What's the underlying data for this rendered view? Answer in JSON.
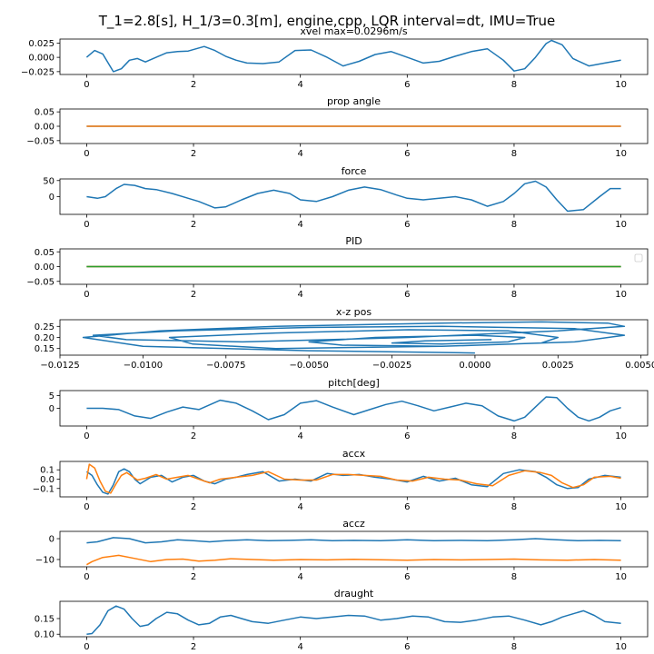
{
  "suptitle": "T_1=2.8[s], H_1/3=0.3[m], engine,cpp, LQR interval=dt, IMU=True",
  "colors": {
    "blue": "#1f77b4",
    "orange": "#ff7f0e",
    "green": "#2ca02c",
    "axis": "#000000"
  },
  "chart_data": [
    {
      "type": "line",
      "title": "xvel max=0.0296m/s",
      "xlim": [
        -0.5,
        10.5
      ],
      "ylim": [
        -0.03,
        0.032
      ],
      "xticks": [
        0,
        2,
        4,
        6,
        8,
        10
      ],
      "xtick_labels": [
        "0",
        "2",
        "4",
        "6",
        "8",
        "10"
      ],
      "yticks": [
        -0.025,
        0,
        0.025
      ],
      "ytick_labels": [
        "−0.025",
        "0.000",
        "0.025"
      ],
      "series": [
        {
          "color": "#1f77b4",
          "x": [
            0,
            0.15,
            0.3,
            0.5,
            0.65,
            0.8,
            0.95,
            1.1,
            1.3,
            1.5,
            1.7,
            1.9,
            2.2,
            2.4,
            2.6,
            2.8,
            3.0,
            3.3,
            3.6,
            3.9,
            4.2,
            4.5,
            4.8,
            5.1,
            5.4,
            5.7,
            6.0,
            6.3,
            6.6,
            6.9,
            7.2,
            7.5,
            7.8,
            8.0,
            8.2,
            8.4,
            8.6,
            8.7,
            8.9,
            9.1,
            9.4,
            9.7,
            10.0
          ],
          "y": [
            0.0,
            0.012,
            0.006,
            -0.025,
            -0.02,
            -0.005,
            -0.002,
            -0.008,
            0.0,
            0.008,
            0.01,
            0.011,
            0.019,
            0.012,
            0.002,
            -0.005,
            -0.01,
            -0.011,
            -0.008,
            0.012,
            0.013,
            0.0,
            -0.015,
            -0.007,
            0.005,
            0.01,
            0.0,
            -0.01,
            -0.007,
            0.002,
            0.01,
            0.015,
            -0.005,
            -0.024,
            -0.02,
            0.0,
            0.024,
            0.0296,
            0.022,
            -0.002,
            -0.015,
            -0.01,
            -0.005
          ]
        }
      ]
    },
    {
      "type": "line",
      "title": "prop angle",
      "xlim": [
        -0.5,
        10.5
      ],
      "ylim": [
        -0.06,
        0.06
      ],
      "xticks": [
        0,
        2,
        4,
        6,
        8,
        10
      ],
      "xtick_labels": [
        "0",
        "2",
        "4",
        "6",
        "8",
        "10"
      ],
      "yticks": [
        -0.05,
        0,
        0.05
      ],
      "ytick_labels": [
        "−0.05",
        "0.00",
        "0.05"
      ],
      "series": [
        {
          "color": "#1f77b4",
          "x": [
            0,
            10
          ],
          "y": [
            0,
            0
          ]
        },
        {
          "color": "#ff7f0e",
          "x": [
            0,
            10
          ],
          "y": [
            0,
            0
          ]
        }
      ]
    },
    {
      "type": "line",
      "title": "force",
      "xlim": [
        -0.5,
        10.5
      ],
      "ylim": [
        -55,
        55
      ],
      "xticks": [
        0,
        2,
        4,
        6,
        8,
        10
      ],
      "xtick_labels": [
        "0",
        "2",
        "4",
        "6",
        "8",
        "10"
      ],
      "yticks": [
        0,
        50
      ],
      "ytick_labels": [
        "0",
        "50"
      ],
      "series": [
        {
          "color": "#1f77b4",
          "x": [
            0,
            0.2,
            0.35,
            0.55,
            0.7,
            0.9,
            1.1,
            1.3,
            1.6,
            1.9,
            2.1,
            2.4,
            2.6,
            2.9,
            3.2,
            3.5,
            3.8,
            4.0,
            4.3,
            4.6,
            4.9,
            5.2,
            5.5,
            5.8,
            6.0,
            6.3,
            6.6,
            6.9,
            7.2,
            7.5,
            7.8,
            8.0,
            8.2,
            8.4,
            8.6,
            8.8,
            9.0,
            9.3,
            9.6,
            9.8,
            10.0
          ],
          "y": [
            0,
            -5,
            0,
            25,
            38,
            35,
            25,
            22,
            10,
            -5,
            -15,
            -35,
            -32,
            -10,
            10,
            20,
            10,
            -10,
            -15,
            0,
            20,
            30,
            22,
            5,
            -5,
            -10,
            -5,
            0,
            -10,
            -30,
            -15,
            10,
            40,
            48,
            30,
            -10,
            -45,
            -40,
            0,
            25,
            25
          ]
        }
      ]
    },
    {
      "type": "line",
      "title": "PID",
      "xlim": [
        -0.5,
        10.5
      ],
      "ylim": [
        -0.06,
        0.06
      ],
      "xticks": [
        0,
        2,
        4,
        6,
        8,
        10
      ],
      "xtick_labels": [
        "0",
        "2",
        "4",
        "6",
        "8",
        "10"
      ],
      "yticks": [
        -0.05,
        0,
        0.05
      ],
      "ytick_labels": [
        "−0.05",
        "0.00",
        "0.05"
      ],
      "legend": "upper right, empty",
      "series": [
        {
          "color": "#1f77b4",
          "x": [
            0,
            10
          ],
          "y": [
            0,
            0
          ]
        },
        {
          "color": "#ff7f0e",
          "x": [
            0,
            10
          ],
          "y": [
            0,
            0
          ]
        },
        {
          "color": "#2ca02c",
          "x": [
            0,
            10
          ],
          "y": [
            0,
            0
          ]
        }
      ]
    },
    {
      "type": "line",
      "title": "x-z pos",
      "xlim": [
        -0.0125,
        0.0052
      ],
      "ylim": [
        0.12,
        0.28
      ],
      "xticks": [
        -0.0125,
        -0.01,
        -0.0075,
        -0.005,
        -0.0025,
        0,
        0.0025,
        0.005
      ],
      "xtick_labels": [
        "−0.0125",
        "−0.0100",
        "−0.0075",
        "−0.0050",
        "−0.0025",
        "0.0000",
        "0.0025",
        "0.0050"
      ],
      "yticks": [
        0.15,
        0.2,
        0.25
      ],
      "ytick_labels": [
        "0.15",
        "0.20",
        "0.25"
      ],
      "series": [
        {
          "color": "#1f77b4",
          "x": [
            0.0,
            -0.005,
            -0.01,
            -0.0118,
            -0.0095,
            -0.006,
            -0.001,
            0.002,
            0.004,
            0.0045,
            0.0025,
            -0.002,
            -0.007,
            -0.0105,
            -0.0115,
            -0.009,
            -0.005,
            -0.001,
            0.003,
            0.0045,
            0.003,
            -0.001,
            -0.006,
            -0.0085,
            -0.0092,
            -0.006,
            -0.002,
            0.001,
            0.0025,
            0.002,
            -0.001,
            -0.004,
            -0.005,
            -0.003,
            0.0,
            0.0015,
            0.001,
            -0.001,
            -0.0025,
            -0.0015,
            0.0005
          ],
          "y": [
            0.13,
            0.14,
            0.16,
            0.2,
            0.23,
            0.25,
            0.265,
            0.27,
            0.265,
            0.25,
            0.23,
            0.2,
            0.18,
            0.19,
            0.21,
            0.23,
            0.245,
            0.25,
            0.24,
            0.21,
            0.18,
            0.16,
            0.15,
            0.17,
            0.2,
            0.22,
            0.235,
            0.23,
            0.2,
            0.175,
            0.16,
            0.165,
            0.18,
            0.2,
            0.21,
            0.2,
            0.18,
            0.17,
            0.175,
            0.185,
            0.19
          ]
        }
      ]
    },
    {
      "type": "line",
      "title": "pitch[deg]",
      "xlim": [
        -0.5,
        10.5
      ],
      "ylim": [
        -7,
        7
      ],
      "xticks": [
        0,
        2,
        4,
        6,
        8,
        10
      ],
      "xtick_labels": [
        "0",
        "2",
        "4",
        "6",
        "8",
        "10"
      ],
      "yticks": [
        0,
        5
      ],
      "ytick_labels": [
        "0",
        "5"
      ],
      "series": [
        {
          "color": "#1f77b4",
          "x": [
            0,
            0.3,
            0.6,
            0.9,
            1.2,
            1.5,
            1.8,
            2.1,
            2.5,
            2.8,
            3.1,
            3.4,
            3.7,
            4.0,
            4.3,
            4.6,
            5.0,
            5.3,
            5.6,
            5.9,
            6.2,
            6.5,
            6.8,
            7.1,
            7.4,
            7.7,
            8.0,
            8.2,
            8.4,
            8.6,
            8.8,
            9.0,
            9.2,
            9.4,
            9.6,
            9.8,
            10.0
          ],
          "y": [
            0,
            0,
            -0.5,
            -3.0,
            -4.0,
            -1.5,
            0.5,
            -0.5,
            3.2,
            2.0,
            -1.0,
            -4.5,
            -2.5,
            2.0,
            3.0,
            0.5,
            -2.5,
            -0.5,
            1.5,
            2.8,
            1.0,
            -1.0,
            0.5,
            2.0,
            1.0,
            -3.0,
            -5.0,
            -3.5,
            0.5,
            4.5,
            4.2,
            0.0,
            -3.5,
            -5.0,
            -3.5,
            -1.0,
            0.3
          ]
        }
      ]
    },
    {
      "type": "line",
      "title": "accx",
      "xlim": [
        -0.5,
        10.5
      ],
      "ylim": [
        -0.19,
        0.19
      ],
      "xticks": [
        0,
        2,
        4,
        6,
        8,
        10
      ],
      "xtick_labels": [
        "0",
        "2",
        "4",
        "6",
        "8",
        "10"
      ],
      "yticks": [
        -0.1,
        0,
        0.1
      ],
      "ytick_labels": [
        "−0.1",
        "0.0",
        "0.1"
      ],
      "series": [
        {
          "color": "#1f77b4",
          "x": [
            0,
            0.1,
            0.2,
            0.3,
            0.4,
            0.5,
            0.6,
            0.7,
            0.8,
            0.9,
            1.0,
            1.2,
            1.4,
            1.6,
            1.8,
            2.0,
            2.2,
            2.4,
            2.6,
            2.8,
            3.0,
            3.3,
            3.6,
            3.9,
            4.2,
            4.5,
            4.8,
            5.1,
            5.4,
            5.7,
            6.0,
            6.3,
            6.6,
            6.9,
            7.2,
            7.5,
            7.8,
            8.1,
            8.4,
            8.6,
            8.8,
            9.0,
            9.2,
            9.4,
            9.7,
            10.0
          ],
          "y": [
            0.08,
            0.04,
            -0.06,
            -0.14,
            -0.16,
            -0.06,
            0.08,
            0.11,
            0.08,
            0.0,
            -0.05,
            0.02,
            0.04,
            -0.03,
            0.02,
            0.04,
            -0.02,
            -0.05,
            0.0,
            0.02,
            0.05,
            0.08,
            -0.02,
            0.0,
            -0.02,
            0.06,
            0.04,
            0.05,
            0.02,
            0.0,
            -0.03,
            0.03,
            -0.02,
            0.01,
            -0.06,
            -0.08,
            0.06,
            0.1,
            0.08,
            0.02,
            -0.06,
            -0.1,
            -0.09,
            0.0,
            0.04,
            0.02
          ]
        },
        {
          "color": "#ff7f0e",
          "x": [
            0,
            0.05,
            0.15,
            0.25,
            0.35,
            0.45,
            0.55,
            0.65,
            0.75,
            0.85,
            0.95,
            1.1,
            1.3,
            1.5,
            1.7,
            1.9,
            2.1,
            2.3,
            2.5,
            2.8,
            3.1,
            3.4,
            3.7,
            4.0,
            4.3,
            4.6,
            4.9,
            5.2,
            5.5,
            5.8,
            6.1,
            6.4,
            6.7,
            7.0,
            7.3,
            7.6,
            7.9,
            8.2,
            8.5,
            8.7,
            8.9,
            9.1,
            9.3,
            9.5,
            9.8,
            10.0
          ],
          "y": [
            0.0,
            0.16,
            0.12,
            -0.02,
            -0.13,
            -0.15,
            -0.05,
            0.04,
            0.07,
            0.03,
            -0.01,
            0.01,
            0.05,
            0.0,
            0.02,
            0.04,
            0.0,
            -0.04,
            0.0,
            0.02,
            0.04,
            0.08,
            0.0,
            -0.01,
            -0.01,
            0.05,
            0.05,
            0.04,
            0.03,
            -0.01,
            -0.02,
            0.02,
            0.0,
            -0.01,
            -0.05,
            -0.07,
            0.04,
            0.09,
            0.07,
            0.04,
            -0.04,
            -0.09,
            -0.06,
            0.02,
            0.03,
            0.01
          ]
        }
      ]
    },
    {
      "type": "line",
      "title": "accz",
      "xlim": [
        -0.5,
        10.5
      ],
      "ylim": [
        -13.5,
        3.5
      ],
      "xticks": [
        0,
        2,
        4,
        6,
        8,
        10
      ],
      "xtick_labels": [
        "0",
        "2",
        "4",
        "6",
        "8",
        "10"
      ],
      "yticks": [
        -10,
        0
      ],
      "ytick_labels": [
        "−10",
        "0"
      ],
      "series": [
        {
          "color": "#1f77b4",
          "x": [
            0,
            0.2,
            0.5,
            0.8,
            1.1,
            1.4,
            1.7,
            2.0,
            2.3,
            2.6,
            3.0,
            3.4,
            3.8,
            4.2,
            4.6,
            5.0,
            5.5,
            6.0,
            6.5,
            7.0,
            7.5,
            8.0,
            8.4,
            8.8,
            9.2,
            9.6,
            10.0
          ],
          "y": [
            -2.0,
            -1.5,
            0.5,
            0.0,
            -2.0,
            -1.5,
            -0.5,
            -1.0,
            -1.5,
            -1.0,
            -0.5,
            -1.0,
            -0.8,
            -0.5,
            -1.0,
            -0.8,
            -1.0,
            -0.5,
            -1.0,
            -0.8,
            -1.0,
            -0.5,
            0.0,
            -0.5,
            -1.0,
            -0.8,
            -1.0
          ]
        },
        {
          "color": "#ff7f0e",
          "x": [
            0,
            0.1,
            0.3,
            0.6,
            0.9,
            1.2,
            1.5,
            1.8,
            2.1,
            2.4,
            2.7,
            3.0,
            3.5,
            4.0,
            4.5,
            5.0,
            5.5,
            6.0,
            6.5,
            7.0,
            7.5,
            8.0,
            8.5,
            9.0,
            9.5,
            10.0
          ],
          "y": [
            -12.5,
            -11.0,
            -9.0,
            -8.0,
            -9.5,
            -11.0,
            -10.0,
            -9.8,
            -10.8,
            -10.3,
            -9.6,
            -9.9,
            -10.3,
            -10.0,
            -10.2,
            -9.9,
            -10.1,
            -10.3,
            -10.0,
            -10.2,
            -10.0,
            -9.8,
            -10.2,
            -10.3,
            -10.0,
            -10.3
          ]
        }
      ]
    },
    {
      "type": "line",
      "title": "draught",
      "xlim": [
        -0.5,
        10.5
      ],
      "ylim": [
        0.092,
        0.205
      ],
      "xticks": [
        0,
        2,
        4,
        6,
        8,
        10
      ],
      "xtick_labels": [
        "0",
        "2",
        "4",
        "6",
        "8",
        "10"
      ],
      "yticks": [
        0.1,
        0.15
      ],
      "ytick_labels": [
        "0.10",
        "0.15"
      ],
      "series": [
        {
          "color": "#1f77b4",
          "x": [
            0,
            0.1,
            0.25,
            0.4,
            0.55,
            0.7,
            0.85,
            1.0,
            1.15,
            1.3,
            1.5,
            1.7,
            1.9,
            2.1,
            2.3,
            2.5,
            2.7,
            2.9,
            3.1,
            3.4,
            3.7,
            4.0,
            4.3,
            4.6,
            4.9,
            5.2,
            5.5,
            5.8,
            6.1,
            6.4,
            6.7,
            7.0,
            7.3,
            7.6,
            7.9,
            8.2,
            8.5,
            8.7,
            8.9,
            9.1,
            9.3,
            9.5,
            9.7,
            10.0
          ],
          "y": [
            0.1,
            0.102,
            0.13,
            0.175,
            0.19,
            0.18,
            0.15,
            0.125,
            0.13,
            0.15,
            0.17,
            0.165,
            0.145,
            0.13,
            0.135,
            0.155,
            0.16,
            0.15,
            0.14,
            0.135,
            0.145,
            0.155,
            0.15,
            0.155,
            0.16,
            0.158,
            0.145,
            0.15,
            0.158,
            0.155,
            0.14,
            0.138,
            0.145,
            0.155,
            0.158,
            0.145,
            0.13,
            0.14,
            0.155,
            0.165,
            0.175,
            0.16,
            0.14,
            0.135
          ]
        }
      ]
    }
  ]
}
